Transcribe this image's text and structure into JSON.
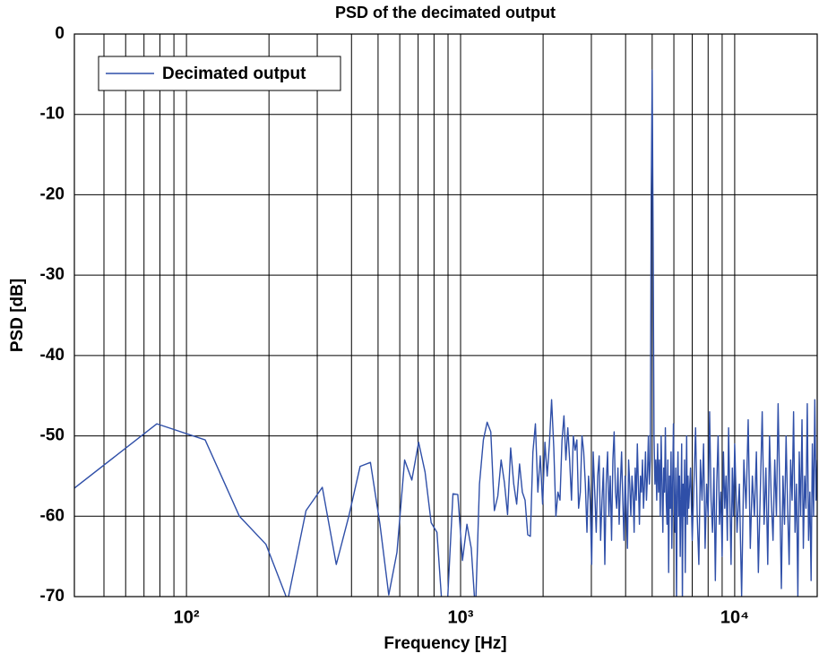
{
  "chart_data": {
    "type": "line",
    "title": "PSD of the decimated output",
    "x_label": "Frequency [Hz]",
    "y_label": "PSD [dB]",
    "x_scale": "log",
    "grid": true,
    "legend_position": "upper left",
    "xlim": [
      39,
      20000
    ],
    "ylim": [
      -70,
      0
    ],
    "yticks": [
      0,
      -10,
      -20,
      -30,
      -40,
      -50,
      -60,
      -70
    ],
    "xticks": [
      {
        "value": 100,
        "label": "10²"
      },
      {
        "value": 1000,
        "label": "10³"
      },
      {
        "value": 10000,
        "label": "10⁴"
      }
    ],
    "xminorticks": [
      50,
      60,
      70,
      80,
      90,
      200,
      300,
      400,
      500,
      600,
      700,
      800,
      900,
      2000,
      3000,
      4000,
      5000,
      6000,
      7000,
      8000,
      9000
    ],
    "x": [
      39,
      78,
      117,
      156,
      195,
      234,
      273,
      313,
      352,
      391,
      430,
      469,
      508,
      547,
      586,
      625,
      664,
      703,
      742,
      781,
      820,
      859,
      898,
      938,
      977,
      1016,
      1055,
      1094,
      1133,
      1172,
      1211,
      1250,
      1289,
      1328,
      1367,
      1406,
      1445,
      1484,
      1523,
      1563,
      1602,
      1641,
      1680,
      1719,
      1758,
      1797,
      1836,
      1875,
      1914,
      1953,
      1992,
      2031,
      2070,
      2109,
      2148,
      2188,
      2227,
      2266,
      2305,
      2344,
      2383,
      2422,
      2461,
      2500,
      2539,
      2578,
      2617,
      2656,
      2695,
      2734,
      2773,
      2813,
      2852,
      2891,
      2930,
      2969,
      3008,
      3047,
      3086,
      3125,
      3164,
      3203,
      3242,
      3281,
      3320,
      3359,
      3398,
      3438,
      3477,
      3516,
      3555,
      3594,
      3633,
      3672,
      3711,
      3750,
      3789,
      3828,
      3867,
      3906,
      3945,
      3984,
      4023,
      4063,
      4102,
      4141,
      4180,
      4219,
      4258,
      4297,
      4336,
      4375,
      4414,
      4453,
      4492,
      4531,
      4570,
      4609,
      4648,
      4688,
      4727,
      4766,
      4805,
      4844,
      4883,
      4922,
      4961,
      5000,
      5039,
      5078,
      5117,
      5156,
      5195,
      5234,
      5273,
      5313,
      5352,
      5391,
      5430,
      5469,
      5508,
      5547,
      5586,
      5625,
      5664,
      5703,
      5742,
      5781,
      5820,
      5859,
      5898,
      5938,
      5977,
      6016,
      6055,
      6094,
      6133,
      6172,
      6211,
      6250,
      6289,
      6328,
      6367,
      6406,
      6445,
      6484,
      6523,
      6563,
      6602,
      6641,
      6680,
      6719,
      6758,
      6797,
      6900,
      7000,
      7100,
      7200,
      7300,
      7400,
      7500,
      7600,
      7700,
      7800,
      7900,
      8000,
      8100,
      8200,
      8300,
      8400,
      8500,
      8600,
      8700,
      8800,
      8900,
      9000,
      9100,
      9200,
      9300,
      9400,
      9500,
      9600,
      9700,
      9800,
      9900,
      10000,
      10200,
      10400,
      10600,
      10800,
      11000,
      11200,
      11400,
      11600,
      11800,
      12000,
      12200,
      12400,
      12600,
      12800,
      13000,
      13200,
      13400,
      13600,
      13800,
      14000,
      14200,
      14400,
      14600,
      14800,
      15000,
      15200,
      15400,
      15600,
      15800,
      16000,
      16200,
      16400,
      16600,
      16800,
      17000,
      17200,
      17400,
      17600,
      17800,
      18000,
      18200,
      18400,
      18600,
      18800,
      19000,
      19200,
      19400,
      19600,
      19800,
      20000
    ],
    "series": [
      {
        "name": "Decimated output",
        "color": "#2f4fa8",
        "values": [
          -56.5,
          -48.5,
          -50.5,
          -60,
          -63.5,
          -70.5,
          -59.3,
          -56.4,
          -66,
          -60,
          -53.8,
          -53.3,
          -61,
          -69.8,
          -64.5,
          -53,
          -55.5,
          -50.8,
          -54.5,
          -60.8,
          -62,
          -72,
          -70,
          -57.2,
          -57.3,
          -65.5,
          -61,
          -64,
          -72,
          -56,
          -50.5,
          -48.3,
          -49.5,
          -59.3,
          -57.5,
          -53,
          -55.8,
          -59.8,
          -51.5,
          -56,
          -58.5,
          -53.5,
          -57,
          -58,
          -62.3,
          -62.5,
          -52,
          -48.5,
          -57,
          -52.5,
          -58.5,
          -50.8,
          -55,
          -51,
          -45.5,
          -51.5,
          -60,
          -57,
          -58,
          -50.6,
          -47.5,
          -53,
          -49,
          -53,
          -58,
          -50,
          -51.8,
          -50.5,
          -59,
          -57,
          -50,
          -52,
          -56,
          -62,
          -55,
          -58,
          -66,
          -52,
          -57,
          -62,
          -55,
          -52.5,
          -63,
          -58,
          -54,
          -66,
          -56,
          -52,
          -60,
          -55,
          -63,
          -53,
          -49.5,
          -57,
          -59,
          -54,
          -61,
          -56,
          -52,
          -58,
          -63,
          -55,
          -59,
          -64,
          -53,
          -56,
          -60,
          -55,
          -57,
          -62,
          -54,
          -58,
          -51,
          -56,
          -61,
          -55,
          -57,
          -53,
          -59,
          -56,
          -52,
          -58,
          -55,
          -50,
          -56,
          -53,
          -20,
          -4.5,
          -25,
          -50,
          -56,
          -53,
          -58,
          -51,
          -57,
          -53,
          -60,
          -50,
          -56,
          -62,
          -54,
          -57,
          -49,
          -58,
          -61,
          -53,
          -67,
          -55,
          -59,
          -52,
          -64,
          -56,
          -48.5,
          -58,
          -62,
          -54,
          -71,
          -57,
          -52,
          -60,
          -55,
          -65,
          -58,
          -51,
          -71,
          -56,
          -60,
          -53,
          -67,
          -57,
          -50,
          -61,
          -55,
          -59,
          -54,
          -63,
          -56,
          -49,
          -60,
          -66,
          -53,
          -58,
          -51,
          -64,
          -56,
          -60,
          -47,
          -58,
          -62,
          -54,
          -68,
          -56,
          -50,
          -61,
          -57,
          -65,
          -52,
          -59,
          -55,
          -63,
          -49,
          -58,
          -66,
          -54,
          -60,
          -51,
          -62,
          -56,
          -70,
          -53,
          -59,
          -48,
          -64,
          -55,
          -60,
          -52,
          -67,
          -57,
          -47,
          -61,
          -54,
          -66,
          -50,
          -58,
          -63,
          -53,
          -60,
          -46,
          -57,
          -69,
          -55,
          -61,
          -50,
          -59,
          -66,
          -53,
          -58,
          -47,
          -62,
          -56,
          -70,
          -52,
          -60,
          -48,
          -64,
          -55,
          -59,
          -46,
          -63,
          -57,
          -68,
          -51,
          -60,
          -45.5,
          -58,
          -53
        ]
      }
    ]
  }
}
